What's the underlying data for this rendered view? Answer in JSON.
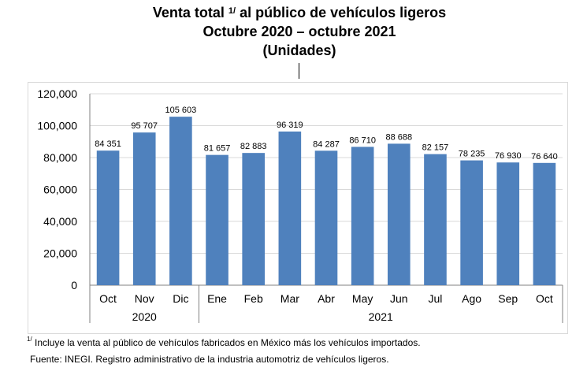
{
  "title": {
    "line1_before": "Venta total ",
    "line1_sup": "1/",
    "line1_after": " al público de vehículos ligeros",
    "line2": "Octubre 2020 – octubre 2021",
    "line3": "(Unidades)"
  },
  "footnotes": {
    "note_sup": "1/",
    "note_text": " Incluye la venta al público de vehículos fabricados en México más los vehículos importados.",
    "source": "Fuente: INEGI. Registro administrativo de la industria automotriz de vehículos ligeros."
  },
  "chart_data": {
    "type": "bar",
    "categories": [
      "Oct",
      "Nov",
      "Dic",
      "Ene",
      "Feb",
      "Mar",
      "Abr",
      "May",
      "Jun",
      "Jul",
      "Ago",
      "Sep",
      "Oct"
    ],
    "values": [
      84351,
      95707,
      105603,
      81657,
      82883,
      96319,
      84287,
      86710,
      88688,
      82157,
      78235,
      76930,
      76640
    ],
    "data_labels": [
      "84 351",
      "95 707",
      "105 603",
      "81 657",
      "82 883",
      "96 319",
      "84 287",
      "86 710",
      "88 688",
      "82 157",
      "78 235",
      "76 930",
      "76 640"
    ],
    "year_groups": [
      {
        "label": "2020",
        "from": 0,
        "to": 2
      },
      {
        "label": "2021",
        "from": 3,
        "to": 12
      }
    ],
    "y_ticks": [
      "0",
      "20,000",
      "40,000",
      "60,000",
      "80,000",
      "100,000",
      "120,000"
    ],
    "ylim": [
      0,
      120000
    ],
    "grid": true,
    "bar_color": "#4f81bd",
    "grid_color": "#d9d9d9"
  }
}
